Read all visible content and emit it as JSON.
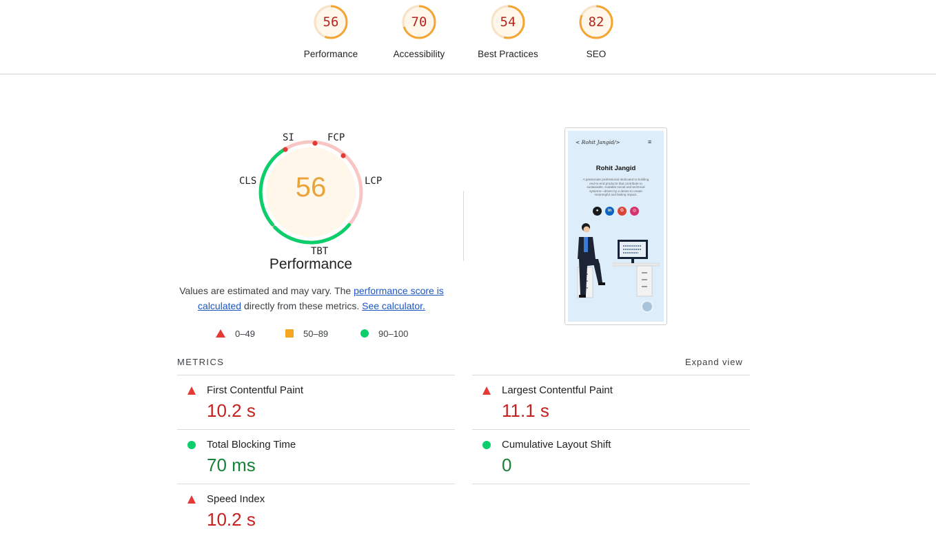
{
  "categories": [
    {
      "label": "Performance",
      "score": "56",
      "fraction": 0.56
    },
    {
      "label": "Accessibility",
      "score": "70",
      "fraction": 0.7
    },
    {
      "label": "Best Practices",
      "score": "54",
      "fraction": 0.54
    },
    {
      "label": "SEO",
      "score": "82",
      "fraction": 0.82
    }
  ],
  "gauge": {
    "score": "56",
    "title": "Performance",
    "tags": {
      "si": "SI",
      "fcp": "FCP",
      "lcp": "LCP",
      "tbt": "TBT",
      "cls": "CLS"
    }
  },
  "description": {
    "text1": "Values are estimated and may vary. The ",
    "link1": "performance score is calculated",
    "text2": " directly from these metrics. ",
    "link2": "See calculator."
  },
  "legend": [
    {
      "range": "0–49",
      "shape": "triangle",
      "color": "#e53935"
    },
    {
      "range": "50–89",
      "shape": "square",
      "color": "#f5a623"
    },
    {
      "range": "90–100",
      "shape": "circle",
      "color": "#0cce6b"
    }
  ],
  "thumbnail": {
    "logo": "< Rohit Jangid/>",
    "menu_icon": "≡",
    "name": "Rohit Jangid",
    "bio": "A passionate professional dedicated to building end-to-end products that contribute to sustainable, scalable social and technical systems—driven by a desire to create meaningful and lasting impact.",
    "social_icons": [
      "github-icon",
      "linkedin-icon",
      "google-icon",
      "instagram-icon"
    ]
  },
  "metrics": {
    "title": "METRICS",
    "expand_label": "Expand view",
    "items": [
      {
        "name": "First Contentful Paint",
        "value": "10.2 s",
        "status": "bad"
      },
      {
        "name": "Largest Contentful Paint",
        "value": "11.1 s",
        "status": "bad"
      },
      {
        "name": "Total Blocking Time",
        "value": "70 ms",
        "status": "good"
      },
      {
        "name": "Cumulative Layout Shift",
        "value": "0",
        "status": "good"
      },
      {
        "name": "Speed Index",
        "value": "10.2 s",
        "status": "bad"
      }
    ]
  },
  "colors": {
    "fail": "#c5221f",
    "average": "#e8a33a",
    "pass": "#188038",
    "link": "#1a56c4"
  }
}
